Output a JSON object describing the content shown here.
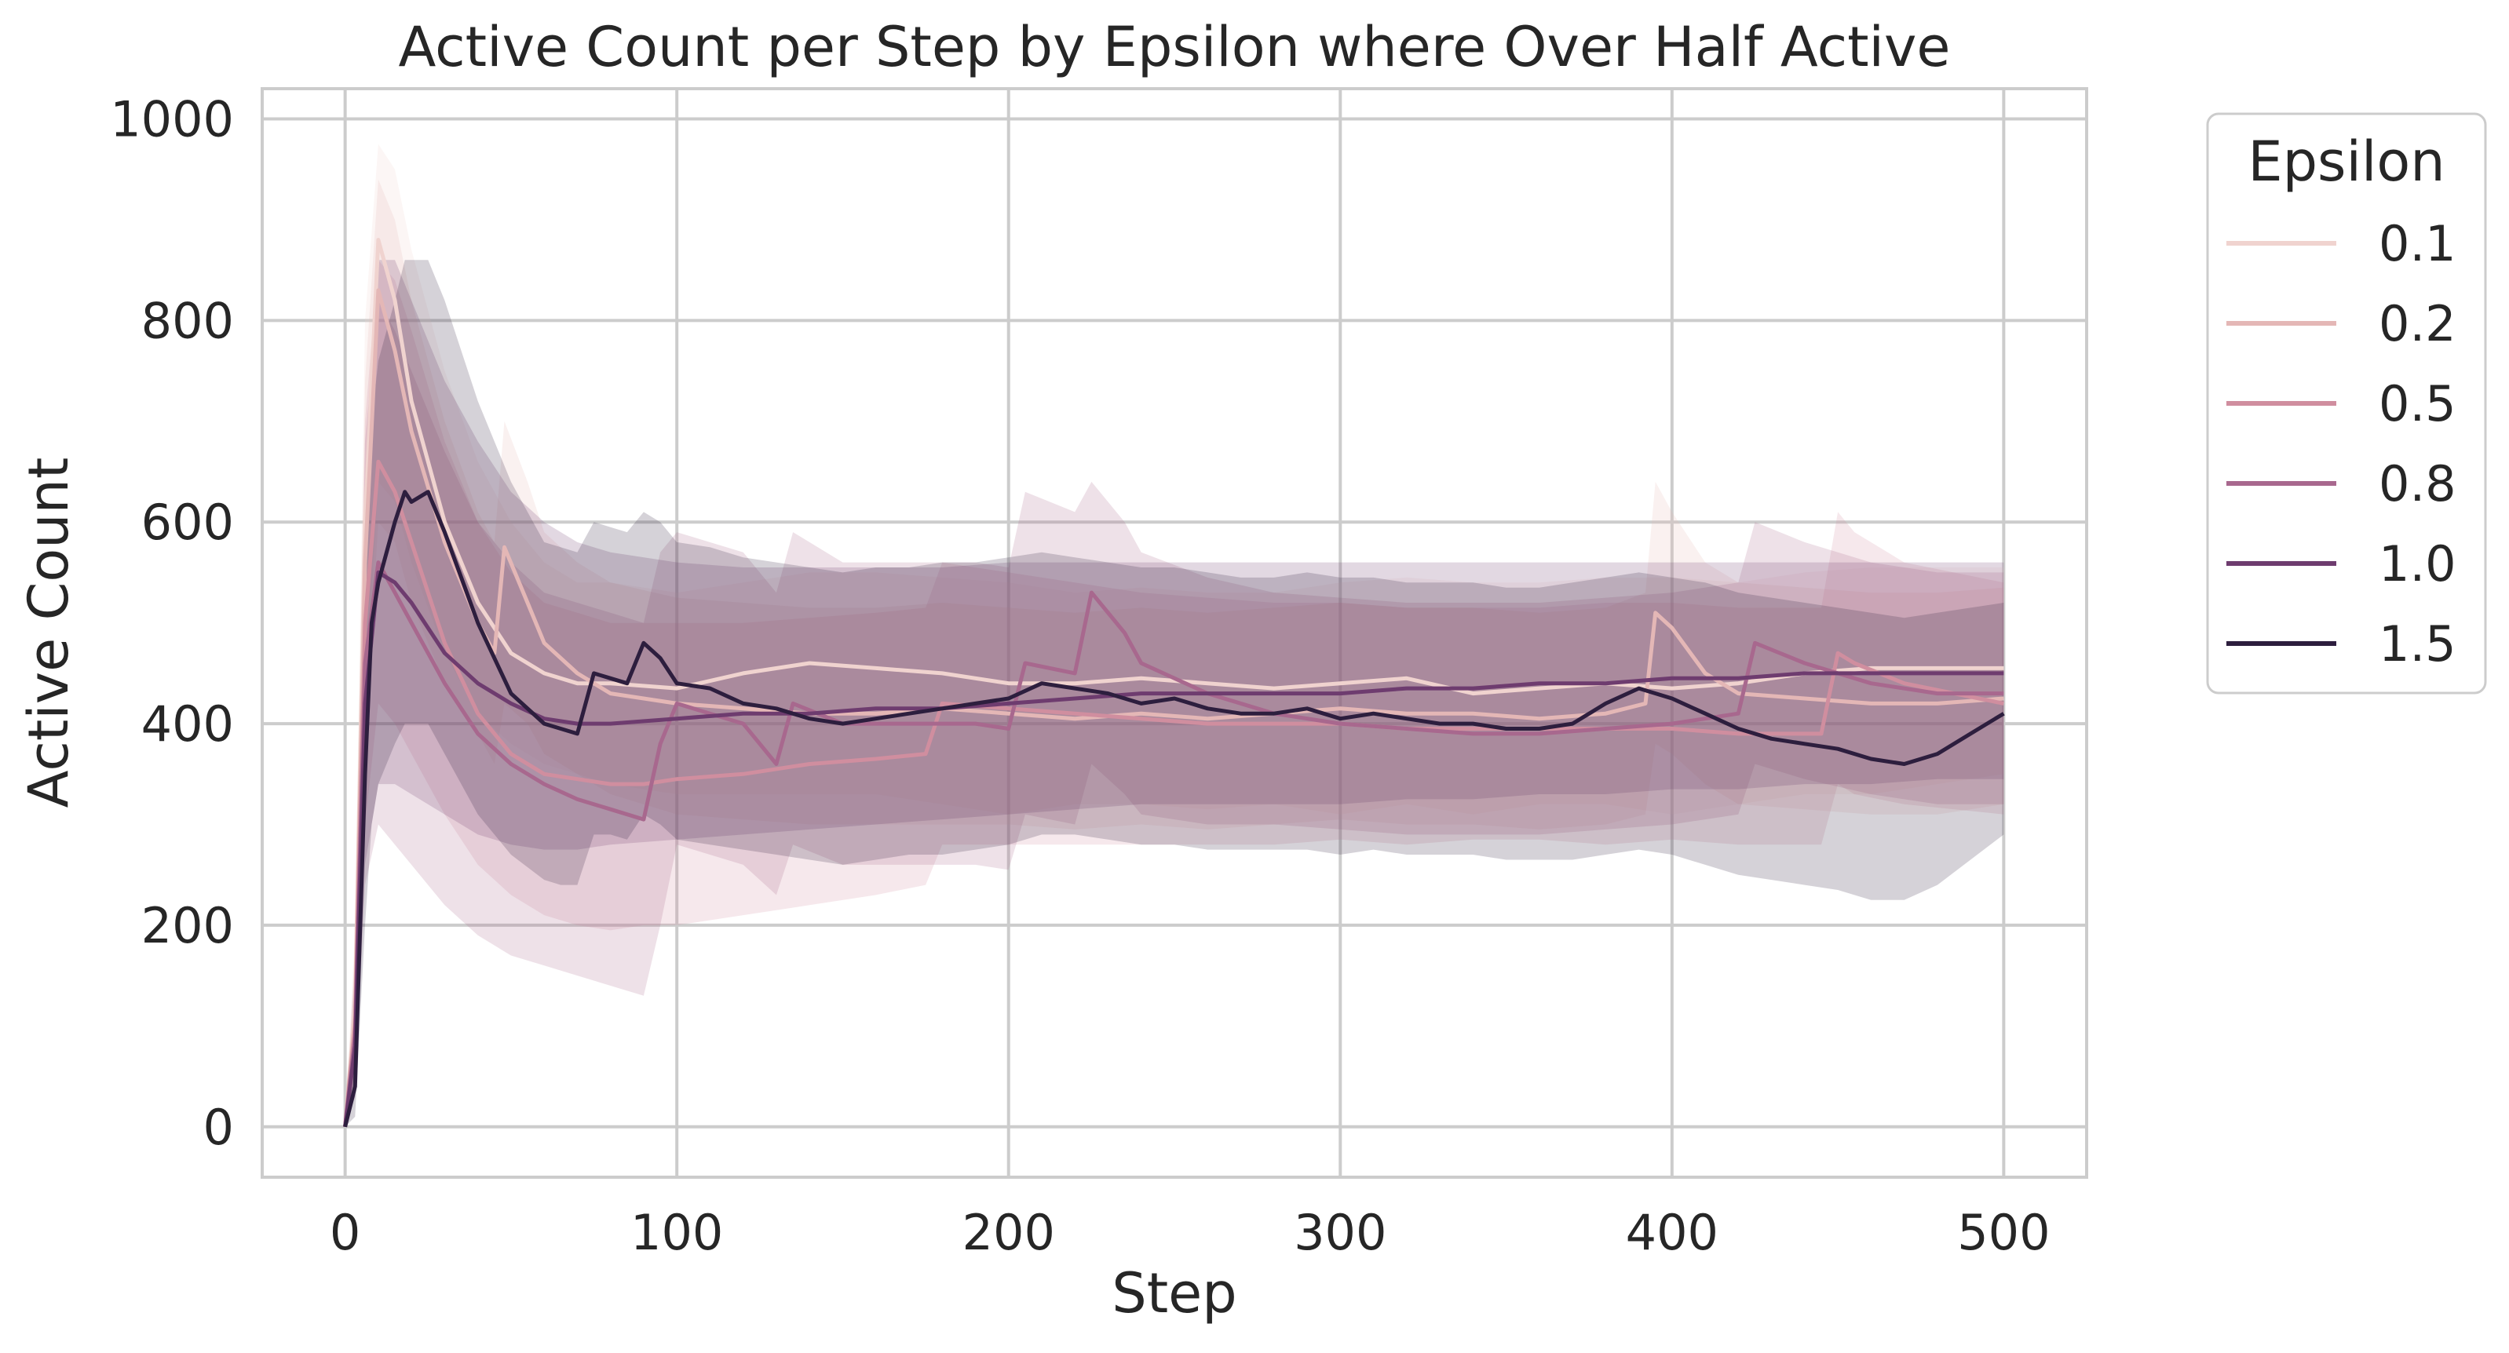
{
  "chart_data": {
    "type": "line",
    "title": "Active Count per Step by Epsilon where Over Half Active",
    "xlabel": "Step",
    "ylabel": "Active Count",
    "xlim": [
      -25,
      525
    ],
    "ylim": [
      -50,
      1030
    ],
    "xticks": [
      0,
      100,
      200,
      300,
      400,
      500
    ],
    "yticks": [
      0,
      200,
      400,
      600,
      800,
      1000
    ],
    "grid": true,
    "legend": {
      "title": "Epsilon",
      "position": "outside-right-top"
    },
    "series": [
      {
        "name": "0.1",
        "color": "#f0d3cf",
        "x": [
          0,
          3,
          6,
          10,
          15,
          20,
          30,
          40,
          50,
          60,
          70,
          80,
          100,
          120,
          140,
          160,
          180,
          200,
          220,
          240,
          260,
          280,
          300,
          320,
          340,
          360,
          380,
          400,
          420,
          440,
          460,
          480,
          500
        ],
        "y": [
          0,
          120,
          600,
          880,
          820,
          720,
          600,
          520,
          470,
          450,
          440,
          440,
          435,
          450,
          460,
          455,
          450,
          440,
          440,
          445,
          440,
          435,
          440,
          445,
          430,
          435,
          440,
          435,
          440,
          450,
          455,
          455,
          455
        ],
        "lower": [
          0,
          60,
          420,
          640,
          620,
          560,
          470,
          410,
          380,
          360,
          350,
          340,
          330,
          330,
          330,
          330,
          320,
          310,
          320,
          320,
          315,
          320,
          310,
          320,
          310,
          320,
          320,
          310,
          320,
          330,
          330,
          340,
          350
        ],
        "upper": [
          0,
          200,
          800,
          975,
          950,
          870,
          750,
          660,
          600,
          560,
          540,
          540,
          530,
          540,
          550,
          550,
          545,
          540,
          530,
          535,
          530,
          530,
          540,
          545,
          540,
          540,
          545,
          545,
          540,
          550,
          555,
          555,
          555
        ]
      },
      {
        "name": "0.2",
        "color": "#e4b7b6",
        "x": [
          0,
          3,
          6,
          10,
          15,
          20,
          30,
          40,
          45,
          48,
          55,
          60,
          70,
          80,
          100,
          120,
          140,
          160,
          180,
          200,
          220,
          240,
          260,
          280,
          300,
          320,
          340,
          360,
          380,
          392,
          395,
          400,
          410,
          420,
          440,
          460,
          480,
          500
        ],
        "y": [
          0,
          110,
          560,
          830,
          770,
          690,
          580,
          500,
          470,
          575,
          520,
          480,
          450,
          430,
          420,
          415,
          410,
          410,
          415,
          410,
          405,
          410,
          405,
          410,
          415,
          410,
          410,
          405,
          410,
          420,
          510,
          495,
          450,
          430,
          425,
          420,
          420,
          425
        ],
        "lower": [
          0,
          50,
          380,
          600,
          580,
          520,
          440,
          390,
          360,
          420,
          400,
          370,
          350,
          330,
          310,
          305,
          300,
          300,
          300,
          300,
          295,
          300,
          295,
          300,
          305,
          300,
          300,
          295,
          300,
          310,
          380,
          370,
          340,
          320,
          315,
          310,
          310,
          320
        ],
        "upper": [
          0,
          180,
          740,
          940,
          900,
          820,
          700,
          610,
          580,
          700,
          640,
          590,
          560,
          540,
          525,
          520,
          515,
          515,
          520,
          515,
          510,
          515,
          510,
          515,
          520,
          515,
          515,
          510,
          515,
          530,
          640,
          610,
          560,
          540,
          535,
          530,
          530,
          535
        ]
      },
      {
        "name": "0.5",
        "color": "#d08e9f",
        "x": [
          0,
          3,
          6,
          10,
          15,
          20,
          30,
          40,
          50,
          60,
          70,
          80,
          90,
          100,
          120,
          140,
          160,
          175,
          180,
          200,
          220,
          240,
          260,
          280,
          300,
          320,
          340,
          360,
          380,
          400,
          420,
          445,
          450,
          455,
          470,
          500
        ],
        "y": [
          0,
          100,
          500,
          660,
          630,
          580,
          480,
          410,
          370,
          350,
          345,
          340,
          340,
          345,
          350,
          360,
          365,
          370,
          420,
          415,
          410,
          405,
          400,
          400,
          400,
          395,
          395,
          395,
          395,
          395,
          390,
          390,
          470,
          460,
          440,
          420
        ],
        "lower": [
          0,
          40,
          300,
          420,
          400,
          370,
          310,
          260,
          230,
          210,
          200,
          195,
          200,
          200,
          210,
          220,
          230,
          240,
          280,
          280,
          280,
          280,
          280,
          280,
          285,
          280,
          285,
          285,
          280,
          285,
          280,
          280,
          340,
          330,
          320,
          310
        ],
        "upper": [
          0,
          170,
          700,
          860,
          840,
          790,
          680,
          600,
          550,
          520,
          510,
          500,
          500,
          500,
          500,
          505,
          510,
          515,
          560,
          550,
          540,
          530,
          525,
          520,
          520,
          515,
          515,
          515,
          520,
          520,
          515,
          515,
          610,
          590,
          560,
          540
        ]
      },
      {
        "name": "0.8",
        "color": "#a8688e",
        "x": [
          0,
          3,
          6,
          10,
          15,
          20,
          30,
          40,
          50,
          60,
          70,
          80,
          90,
          95,
          100,
          120,
          130,
          135,
          150,
          170,
          190,
          200,
          205,
          220,
          225,
          235,
          240,
          260,
          280,
          300,
          320,
          340,
          360,
          380,
          400,
          420,
          425,
          440,
          460,
          480,
          500
        ],
        "y": [
          0,
          90,
          460,
          560,
          530,
          500,
          440,
          390,
          360,
          340,
          325,
          315,
          305,
          380,
          420,
          400,
          360,
          420,
          400,
          400,
          400,
          395,
          460,
          450,
          530,
          490,
          460,
          430,
          410,
          400,
          395,
          390,
          390,
          395,
          400,
          410,
          480,
          460,
          440,
          430,
          430
        ],
        "lower": [
          0,
          30,
          240,
          300,
          280,
          260,
          220,
          190,
          170,
          160,
          150,
          140,
          130,
          200,
          280,
          260,
          230,
          280,
          260,
          260,
          260,
          255,
          310,
          300,
          360,
          330,
          310,
          300,
          300,
          295,
          290,
          290,
          290,
          295,
          300,
          310,
          360,
          345,
          330,
          320,
          320
        ],
        "upper": [
          0,
          160,
          680,
          820,
          790,
          750,
          670,
          600,
          560,
          530,
          520,
          510,
          500,
          570,
          590,
          570,
          530,
          590,
          560,
          560,
          560,
          555,
          630,
          610,
          640,
          600,
          570,
          545,
          530,
          525,
          520,
          520,
          520,
          525,
          530,
          540,
          600,
          580,
          560,
          550,
          550
        ]
      },
      {
        "name": "1.0",
        "color": "#6e3c6f",
        "x": [
          0,
          3,
          6,
          10,
          15,
          20,
          30,
          40,
          50,
          60,
          70,
          80,
          100,
          120,
          140,
          160,
          180,
          200,
          220,
          240,
          260,
          280,
          300,
          320,
          340,
          360,
          380,
          400,
          420,
          440,
          460,
          480,
          500
        ],
        "y": [
          0,
          80,
          420,
          550,
          540,
          520,
          470,
          440,
          420,
          405,
          400,
          400,
          405,
          410,
          410,
          415,
          415,
          420,
          425,
          430,
          430,
          430,
          430,
          435,
          435,
          440,
          440,
          445,
          445,
          450,
          450,
          450,
          450
        ],
        "lower": [
          0,
          30,
          260,
          340,
          340,
          330,
          310,
          290,
          280,
          275,
          275,
          280,
          285,
          290,
          295,
          300,
          305,
          310,
          315,
          320,
          320,
          320,
          320,
          325,
          325,
          330,
          330,
          335,
          335,
          340,
          340,
          345,
          345
        ],
        "upper": [
          0,
          150,
          640,
          860,
          860,
          820,
          740,
          680,
          630,
          600,
          580,
          570,
          560,
          555,
          555,
          555,
          555,
          560,
          560,
          560,
          560,
          560,
          560,
          560,
          560,
          560,
          560,
          560,
          560,
          560,
          560,
          560,
          560
        ]
      },
      {
        "name": "1.5",
        "color": "#2d1e3e",
        "x": [
          0,
          3,
          6,
          8,
          10,
          15,
          18,
          20,
          25,
          30,
          40,
          50,
          60,
          65,
          70,
          75,
          80,
          85,
          90,
          95,
          100,
          110,
          120,
          130,
          140,
          150,
          160,
          170,
          180,
          190,
          200,
          210,
          220,
          230,
          240,
          250,
          260,
          270,
          280,
          290,
          300,
          310,
          320,
          330,
          340,
          350,
          360,
          370,
          380,
          390,
          400,
          410,
          420,
          430,
          440,
          450,
          460,
          470,
          480,
          490,
          500
        ],
        "y": [
          0,
          40,
          350,
          500,
          540,
          600,
          630,
          620,
          630,
          590,
          500,
          430,
          400,
          395,
          390,
          450,
          445,
          440,
          480,
          465,
          440,
          435,
          420,
          415,
          405,
          400,
          405,
          410,
          415,
          420,
          425,
          440,
          435,
          430,
          420,
          425,
          415,
          410,
          410,
          415,
          405,
          410,
          405,
          400,
          400,
          395,
          395,
          400,
          420,
          435,
          425,
          410,
          395,
          385,
          380,
          375,
          365,
          360,
          370,
          390,
          410
        ],
        "lower": [
          0,
          10,
          200,
          300,
          340,
          380,
          400,
          400,
          400,
          370,
          310,
          270,
          245,
          240,
          240,
          290,
          290,
          285,
          310,
          300,
          285,
          280,
          275,
          270,
          265,
          260,
          265,
          270,
          270,
          275,
          280,
          290,
          290,
          285,
          280,
          280,
          275,
          275,
          275,
          275,
          270,
          275,
          270,
          270,
          270,
          265,
          265,
          265,
          270,
          275,
          270,
          260,
          250,
          245,
          240,
          235,
          225,
          225,
          240,
          265,
          290
        ],
        "upper": [
          0,
          90,
          520,
          700,
          760,
          820,
          860,
          860,
          860,
          820,
          720,
          640,
          580,
          575,
          570,
          600,
          595,
          590,
          610,
          600,
          580,
          575,
          565,
          560,
          555,
          550,
          555,
          555,
          560,
          560,
          565,
          570,
          565,
          560,
          555,
          555,
          550,
          545,
          545,
          550,
          545,
          545,
          540,
          540,
          540,
          535,
          535,
          540,
          545,
          550,
          545,
          540,
          530,
          525,
          520,
          515,
          510,
          505,
          510,
          515,
          520
        ]
      }
    ]
  }
}
